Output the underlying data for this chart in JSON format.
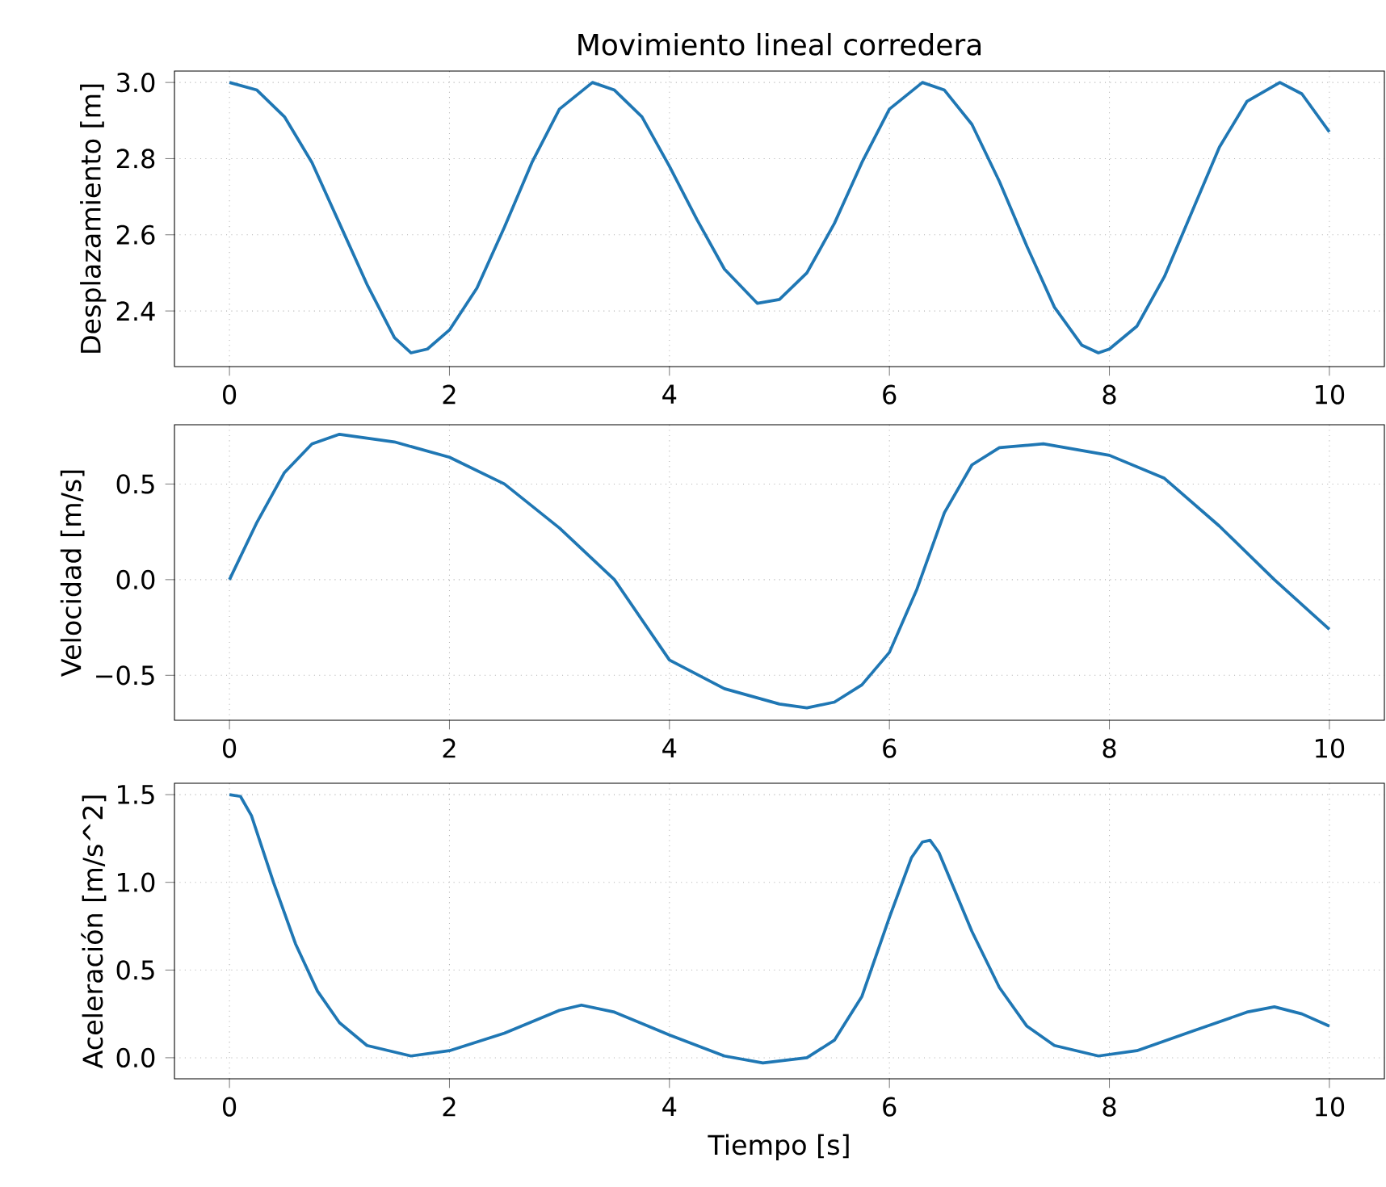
{
  "chart_data": [
    {
      "type": "line",
      "title": "Movimiento lineal corredera",
      "ylabel": "Desplazamiento [m]",
      "grid": true,
      "xlim": [
        -0.5,
        10.5
      ],
      "ylim": [
        2.254,
        3.03
      ],
      "xticks": [
        0,
        2,
        4,
        6,
        8,
        10
      ],
      "yticks": [
        {
          "value": 2.4,
          "label": "2.4"
        },
        {
          "value": 2.6,
          "label": "2.6"
        },
        {
          "value": 2.8,
          "label": "2.8"
        },
        {
          "value": 3,
          "label": "3.0"
        }
      ],
      "series": [
        {
          "color": "#1f77b4",
          "x": [
            0,
            0.25,
            0.5,
            0.75,
            1.0,
            1.25,
            1.5,
            1.65,
            1.8,
            2.0,
            2.25,
            2.5,
            2.75,
            3.0,
            3.3,
            3.5,
            3.75,
            4.0,
            4.25,
            4.5,
            4.8,
            5.0,
            5.25,
            5.5,
            5.75,
            6.0,
            6.3,
            6.5,
            6.75,
            7.0,
            7.25,
            7.5,
            7.75,
            7.9,
            8.0,
            8.25,
            8.5,
            8.75,
            9.0,
            9.25,
            9.55,
            9.75,
            10
          ],
          "values": [
            3.0,
            2.98,
            2.91,
            2.79,
            2.63,
            2.47,
            2.33,
            2.29,
            2.3,
            2.35,
            2.46,
            2.62,
            2.79,
            2.93,
            3.0,
            2.98,
            2.91,
            2.78,
            2.64,
            2.51,
            2.42,
            2.43,
            2.5,
            2.63,
            2.79,
            2.93,
            3.0,
            2.98,
            2.89,
            2.74,
            2.57,
            2.41,
            2.31,
            2.29,
            2.3,
            2.36,
            2.49,
            2.66,
            2.83,
            2.95,
            3.0,
            2.97,
            2.87
          ]
        }
      ]
    },
    {
      "type": "line",
      "ylabel": "Velocidad [m/s]",
      "grid": true,
      "xlim": [
        -0.5,
        10.5
      ],
      "ylim": [
        -0.735,
        0.81
      ],
      "xticks": [
        0,
        2,
        4,
        6,
        8,
        10
      ],
      "yticks": [
        {
          "value": -0.5,
          "label": "−0.5"
        },
        {
          "value": 0,
          "label": "0.0"
        },
        {
          "value": 0.5,
          "label": "0.5"
        }
      ],
      "series": [
        {
          "color": "#1f77b4",
          "x": [
            0,
            0.25,
            0.5,
            0.75,
            1.0,
            1.5,
            2.0,
            2.5,
            3.0,
            3.5,
            4.0,
            4.5,
            5.0,
            5.25,
            5.5,
            5.75,
            6.0,
            6.25,
            6.5,
            6.75,
            7.0,
            7.4,
            8.0,
            8.5,
            9.0,
            9.5,
            10
          ],
          "values": [
            0,
            0.3,
            0.56,
            0.71,
            0.76,
            0.72,
            0.64,
            0.5,
            0.27,
            0.0,
            -0.42,
            -0.57,
            -0.65,
            -0.67,
            -0.64,
            -0.55,
            -0.38,
            -0.05,
            0.35,
            0.6,
            0.69,
            0.71,
            0.65,
            0.53,
            0.28,
            0.0,
            -0.26
          ]
        }
      ]
    },
    {
      "type": "line",
      "xlabel": "Tiempo [s]",
      "ylabel": "Aceleración [m/s^2]",
      "grid": true,
      "xlim": [
        -0.5,
        10.5
      ],
      "ylim": [
        -0.12,
        1.565
      ],
      "xticks": [
        0,
        2,
        4,
        6,
        8,
        10
      ],
      "yticks": [
        {
          "value": 0,
          "label": "0.0"
        },
        {
          "value": 0.5,
          "label": "0.5"
        },
        {
          "value": 1,
          "label": "1.0"
        },
        {
          "value": 1.5,
          "label": "1.5"
        }
      ],
      "series": [
        {
          "color": "#1f77b4",
          "x": [
            0,
            0.1,
            0.2,
            0.4,
            0.6,
            0.8,
            1.0,
            1.25,
            1.65,
            2.0,
            2.5,
            3.0,
            3.2,
            3.5,
            4.0,
            4.5,
            4.85,
            5.25,
            5.5,
            5.75,
            6.0,
            6.2,
            6.3,
            6.37,
            6.45,
            6.75,
            7.0,
            7.25,
            7.5,
            7.9,
            8.25,
            8.75,
            9.25,
            9.5,
            9.75,
            10
          ],
          "values": [
            1.5,
            1.49,
            1.38,
            1.0,
            0.65,
            0.38,
            0.2,
            0.07,
            0.01,
            0.04,
            0.14,
            0.27,
            0.3,
            0.26,
            0.13,
            0.01,
            -0.03,
            0.0,
            0.1,
            0.35,
            0.8,
            1.14,
            1.23,
            1.24,
            1.17,
            0.72,
            0.4,
            0.18,
            0.07,
            0.01,
            0.04,
            0.15,
            0.26,
            0.29,
            0.25,
            0.18
          ]
        }
      ]
    }
  ]
}
